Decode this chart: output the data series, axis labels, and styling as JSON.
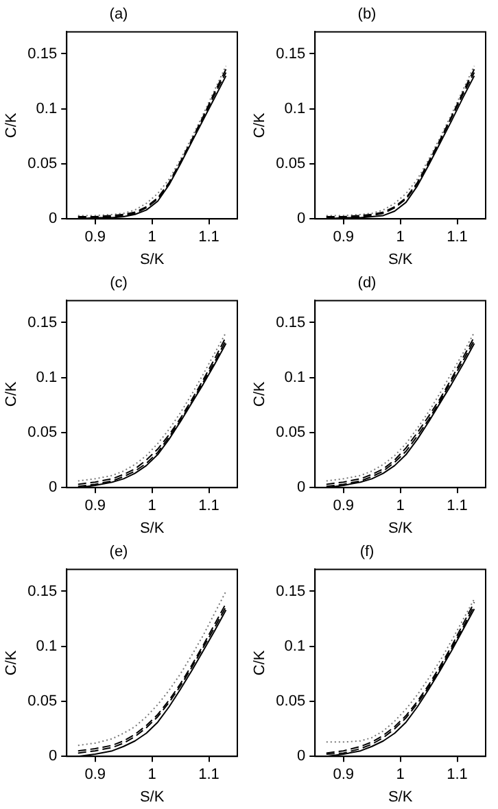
{
  "chart_data": [
    {
      "type": "line",
      "title": "(a)",
      "xlabel": "S/K",
      "ylabel": "C/K",
      "xlim": [
        0.85,
        1.15
      ],
      "xticks": [
        0.9,
        1,
        1.1
      ],
      "ylim": [
        0,
        0.17
      ],
      "yticks": [
        0,
        0.05,
        0.1,
        0.15
      ],
      "grid": false,
      "legend": false,
      "marker": "none",
      "x": [
        0.87,
        0.9,
        0.93,
        0.95,
        0.97,
        0.99,
        1.01,
        1.03,
        1.05,
        1.07,
        1.09,
        1.11,
        1.13
      ],
      "series": [
        {
          "color": "#000000",
          "line_style": "solid",
          "values": [
            0,
            0.001,
            0.001,
            0.002,
            0.004,
            0.008,
            0.016,
            0.031,
            0.05,
            0.07,
            0.09,
            0.11,
            0.13
          ]
        },
        {
          "color": "#000000",
          "line_style": "dashed",
          "values": [
            0.001,
            0.001,
            0.002,
            0.003,
            0.005,
            0.01,
            0.018,
            0.032,
            0.051,
            0.071,
            0.092,
            0.113,
            0.133
          ]
        },
        {
          "color": "#000000",
          "line_style": "dashed",
          "values": [
            0.002,
            0.002,
            0.003,
            0.004,
            0.006,
            0.011,
            0.019,
            0.033,
            0.052,
            0.072,
            0.093,
            0.115,
            0.136
          ]
        },
        {
          "color": "#777777",
          "line_style": "dotted",
          "values": [
            0.003,
            0.003,
            0.004,
            0.005,
            0.008,
            0.014,
            0.023,
            0.036,
            0.054,
            0.074,
            0.095,
            0.117,
            0.139
          ]
        }
      ]
    },
    {
      "type": "line",
      "title": "(b)",
      "xlabel": "S/K",
      "ylabel": "C/K",
      "xlim": [
        0.85,
        1.15
      ],
      "xticks": [
        0.9,
        1,
        1.1
      ],
      "ylim": [
        0,
        0.17
      ],
      "yticks": [
        0,
        0.05,
        0.1,
        0.15
      ],
      "grid": false,
      "legend": false,
      "marker": "none",
      "x": [
        0.87,
        0.9,
        0.93,
        0.95,
        0.97,
        0.99,
        1.01,
        1.03,
        1.05,
        1.07,
        1.09,
        1.11,
        1.13
      ],
      "series": [
        {
          "color": "#000000",
          "line_style": "solid",
          "values": [
            0,
            0.001,
            0.001,
            0.002,
            0.003,
            0.007,
            0.015,
            0.03,
            0.049,
            0.069,
            0.089,
            0.11,
            0.13
          ]
        },
        {
          "color": "#000000",
          "line_style": "dashed",
          "values": [
            0.001,
            0.001,
            0.002,
            0.003,
            0.005,
            0.01,
            0.018,
            0.032,
            0.051,
            0.071,
            0.092,
            0.113,
            0.133
          ]
        },
        {
          "color": "#000000",
          "line_style": "dashed",
          "values": [
            0.002,
            0.002,
            0.003,
            0.004,
            0.006,
            0.011,
            0.019,
            0.033,
            0.052,
            0.072,
            0.093,
            0.115,
            0.136
          ]
        },
        {
          "color": "#777777",
          "line_style": "dotted",
          "values": [
            0.003,
            0.003,
            0.004,
            0.005,
            0.008,
            0.014,
            0.023,
            0.036,
            0.054,
            0.074,
            0.095,
            0.117,
            0.139
          ]
        }
      ]
    },
    {
      "type": "line",
      "title": "(c)",
      "xlabel": "S/K",
      "ylabel": "C/K",
      "xlim": [
        0.85,
        1.15
      ],
      "xticks": [
        0.9,
        1,
        1.1
      ],
      "ylim": [
        0,
        0.17
      ],
      "yticks": [
        0,
        0.05,
        0.1,
        0.15
      ],
      "grid": false,
      "legend": false,
      "marker": "none",
      "x": [
        0.87,
        0.9,
        0.93,
        0.95,
        0.97,
        0.99,
        1.01,
        1.03,
        1.05,
        1.07,
        1.09,
        1.11,
        1.13
      ],
      "series": [
        {
          "color": "#000000",
          "line_style": "solid",
          "values": [
            0,
            0.002,
            0.005,
            0.008,
            0.013,
            0.02,
            0.03,
            0.044,
            0.06,
            0.077,
            0.094,
            0.112,
            0.131
          ]
        },
        {
          "color": "#000000",
          "line_style": "dashed",
          "values": [
            0.003,
            0.005,
            0.008,
            0.012,
            0.017,
            0.025,
            0.035,
            0.048,
            0.063,
            0.08,
            0.098,
            0.117,
            0.137
          ]
        },
        {
          "color": "#000000",
          "line_style": "dashed",
          "values": [
            0.001,
            0.003,
            0.006,
            0.01,
            0.015,
            0.022,
            0.032,
            0.046,
            0.061,
            0.078,
            0.096,
            0.114,
            0.134
          ]
        },
        {
          "color": "#777777",
          "line_style": "dotted",
          "values": [
            0.006,
            0.008,
            0.011,
            0.015,
            0.021,
            0.029,
            0.04,
            0.053,
            0.068,
            0.085,
            0.103,
            0.122,
            0.141
          ]
        }
      ]
    },
    {
      "type": "line",
      "title": "(d)",
      "xlabel": "S/K",
      "ylabel": "C/K",
      "xlim": [
        0.85,
        1.15
      ],
      "xticks": [
        0.9,
        1,
        1.1
      ],
      "ylim": [
        0,
        0.17
      ],
      "yticks": [
        0,
        0.05,
        0.1,
        0.15
      ],
      "grid": false,
      "legend": false,
      "marker": "none",
      "x": [
        0.87,
        0.9,
        0.93,
        0.95,
        0.97,
        0.99,
        1.01,
        1.03,
        1.05,
        1.07,
        1.09,
        1.11,
        1.13
      ],
      "series": [
        {
          "color": "#000000",
          "line_style": "solid",
          "values": [
            0,
            0.002,
            0.005,
            0.008,
            0.013,
            0.02,
            0.03,
            0.044,
            0.06,
            0.077,
            0.094,
            0.112,
            0.131
          ]
        },
        {
          "color": "#000000",
          "line_style": "dashed",
          "values": [
            0.001,
            0.003,
            0.006,
            0.01,
            0.015,
            0.023,
            0.033,
            0.047,
            0.062,
            0.079,
            0.097,
            0.115,
            0.134
          ]
        },
        {
          "color": "#000000",
          "line_style": "dashed",
          "values": [
            0.003,
            0.005,
            0.008,
            0.012,
            0.017,
            0.025,
            0.036,
            0.05,
            0.065,
            0.081,
            0.099,
            0.118,
            0.137
          ]
        },
        {
          "color": "#777777",
          "line_style": "dotted",
          "values": [
            0.006,
            0.008,
            0.011,
            0.015,
            0.021,
            0.029,
            0.04,
            0.054,
            0.069,
            0.086,
            0.104,
            0.122,
            0.141
          ]
        }
      ]
    },
    {
      "type": "line",
      "title": "(e)",
      "xlabel": "S/K",
      "ylabel": "C/K",
      "xlim": [
        0.85,
        1.15
      ],
      "xticks": [
        0.9,
        1,
        1.1
      ],
      "ylim": [
        0,
        0.17
      ],
      "yticks": [
        0,
        0.05,
        0.1,
        0.15
      ],
      "grid": false,
      "legend": false,
      "marker": "none",
      "x": [
        0.87,
        0.9,
        0.93,
        0.95,
        0.97,
        0.99,
        1.01,
        1.03,
        1.05,
        1.07,
        1.09,
        1.11,
        1.13
      ],
      "series": [
        {
          "color": "#000000",
          "line_style": "solid",
          "values": [
            0,
            0.002,
            0.005,
            0.009,
            0.014,
            0.021,
            0.031,
            0.045,
            0.061,
            0.078,
            0.096,
            0.114,
            0.133
          ]
        },
        {
          "color": "#000000",
          "line_style": "dashed",
          "values": [
            0.005,
            0.007,
            0.01,
            0.014,
            0.02,
            0.028,
            0.038,
            0.051,
            0.066,
            0.083,
            0.101,
            0.12,
            0.139
          ]
        },
        {
          "color": "#000000",
          "line_style": "dashed",
          "values": [
            0.003,
            0.005,
            0.008,
            0.012,
            0.018,
            0.026,
            0.036,
            0.049,
            0.064,
            0.081,
            0.099,
            0.117,
            0.136
          ]
        },
        {
          "color": "#777777",
          "line_style": "dotted",
          "values": [
            0.01,
            0.012,
            0.016,
            0.021,
            0.027,
            0.036,
            0.047,
            0.06,
            0.075,
            0.092,
            0.11,
            0.13,
            0.15
          ]
        }
      ]
    },
    {
      "type": "line",
      "title": "(f)",
      "xlabel": "S/K",
      "ylabel": "C/K",
      "xlim": [
        0.85,
        1.15
      ],
      "xticks": [
        0.9,
        1,
        1.1
      ],
      "ylim": [
        0,
        0.17
      ],
      "yticks": [
        0,
        0.05,
        0.1,
        0.15
      ],
      "grid": false,
      "legend": false,
      "marker": "none",
      "x": [
        0.87,
        0.9,
        0.93,
        0.95,
        0.97,
        0.99,
        1.01,
        1.03,
        1.05,
        1.07,
        1.09,
        1.11,
        1.13
      ],
      "series": [
        {
          "color": "#000000",
          "line_style": "solid",
          "values": [
            0,
            0.002,
            0.005,
            0.009,
            0.014,
            0.021,
            0.031,
            0.045,
            0.061,
            0.078,
            0.096,
            0.115,
            0.134
          ]
        },
        {
          "color": "#000000",
          "line_style": "dashed",
          "values": [
            0.003,
            0.005,
            0.009,
            0.013,
            0.019,
            0.027,
            0.037,
            0.05,
            0.065,
            0.082,
            0.1,
            0.12,
            0.14
          ]
        },
        {
          "color": "#000000",
          "line_style": "dashed",
          "values": [
            0.002,
            0.003,
            0.007,
            0.011,
            0.017,
            0.025,
            0.035,
            0.048,
            0.063,
            0.08,
            0.098,
            0.117,
            0.137
          ]
        },
        {
          "color": "#777777",
          "line_style": "dotted",
          "values": [
            0.013,
            0.013,
            0.014,
            0.017,
            0.023,
            0.032,
            0.043,
            0.056,
            0.071,
            0.087,
            0.105,
            0.124,
            0.143
          ]
        }
      ]
    }
  ]
}
